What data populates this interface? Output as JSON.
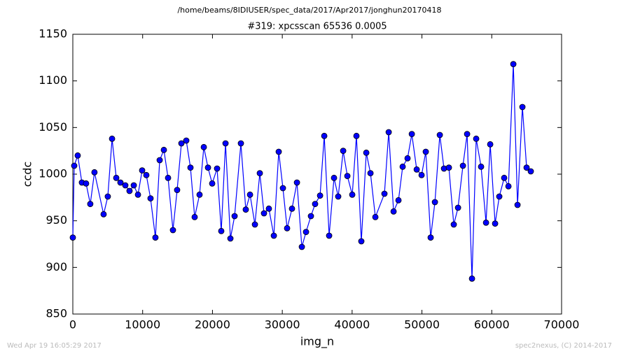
{
  "chart_data": {
    "type": "line",
    "title": "/home/beams/8IDIUSER/spec_data/2017/Apr2017/jonghun20170418",
    "subtitle": "#319: xpcsscan 65536 0.0005",
    "xlabel": "img_n",
    "ylabel": "ccdc",
    "footer_left": "Wed Apr 19 16:05:29 2017",
    "footer_right": "spec2nexus, (C) 2014-2017",
    "color": "#0000ff",
    "marker": true,
    "x": [
      0,
      200,
      700,
      1300,
      1900,
      2500,
      3100,
      4410,
      5010,
      5620,
      6220,
      6820,
      7520,
      8120,
      8730,
      9330,
      9930,
      10530,
      11130,
      11830,
      12440,
      13040,
      13640,
      14340,
      14940,
      15550,
      16250,
      16850,
      17450,
      18150,
      18760,
      19360,
      19960,
      20660,
      21260,
      21870,
      22570,
      23170,
      24070,
      24770,
      25380,
      26080,
      26780,
      27380,
      28080,
      28790,
      29490,
      30090,
      30690,
      31390,
      32100,
      32800,
      33400,
      34100,
      34700,
      35410,
      36010,
      36710,
      37410,
      38010,
      38720,
      39320,
      40020,
      40620,
      41320,
      42030,
      42630,
      43330,
      44630,
      45240,
      45940,
      46640,
      47240,
      47940,
      48550,
      49250,
      49950,
      50550,
      51250,
      51860,
      52560,
      53160,
      53860,
      54560,
      55170,
      55870,
      56470,
      57170,
      57770,
      58470,
      59180,
      59780,
      60480,
      61080,
      61780,
      62390,
      63090,
      63690,
      64390,
      64990,
      65590
    ],
    "values": [
      932,
      1009,
      1020,
      991,
      990,
      968,
      1002,
      957,
      976,
      1038,
      996,
      991,
      988,
      982,
      988,
      978,
      1004,
      999,
      974,
      932,
      1015,
      1026,
      996,
      940,
      983,
      1033,
      1036,
      1007,
      954,
      978,
      1029,
      1007,
      990,
      1006,
      939,
      1033,
      931,
      955,
      1033,
      962,
      978,
      946,
      1001,
      958,
      963,
      934,
      1024,
      985,
      942,
      963,
      991,
      922,
      938,
      955,
      968,
      977,
      1041,
      934,
      996,
      976,
      1025,
      998,
      978,
      1041,
      928,
      1023,
      1001,
      954,
      979,
      1045,
      960,
      972,
      1008,
      1017,
      1043,
      1005,
      999,
      1024,
      932,
      970,
      1042,
      1006,
      1007,
      946,
      964,
      1009,
      1043,
      888,
      1038,
      1008,
      948,
      1032,
      947,
      976,
      996,
      987,
      1118,
      967,
      1072,
      1007,
      1003
    ],
    "xlim": [
      0,
      70000
    ],
    "xticks": [
      0,
      10000,
      20000,
      30000,
      40000,
      50000,
      60000,
      70000
    ],
    "ylim": [
      850,
      1150
    ],
    "yticks": [
      850,
      900,
      950,
      1000,
      1050,
      1100,
      1150
    ]
  }
}
